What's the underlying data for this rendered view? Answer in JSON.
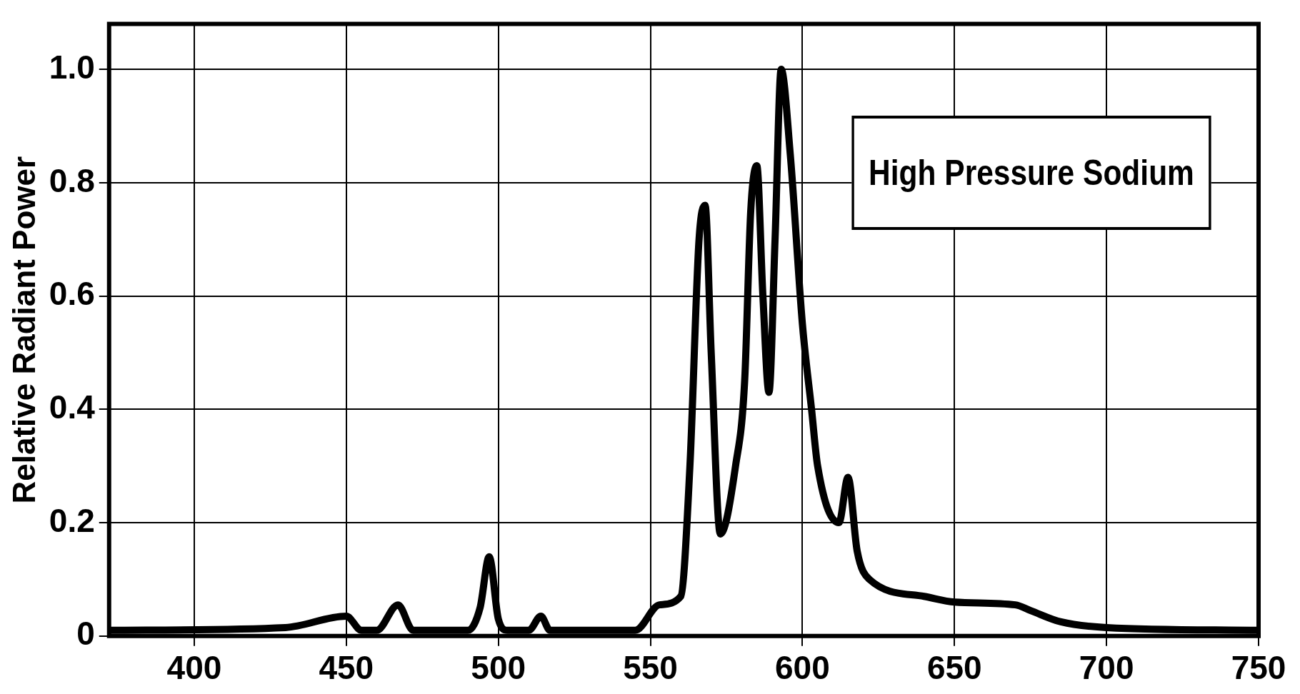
{
  "chart_data": {
    "type": "line",
    "ylabel": "Relative Radiant Power",
    "annotations": [
      "High Pressure Sodium"
    ],
    "series": [
      {
        "color": "#000000",
        "x": [
          372,
          430,
          450,
          455,
          460,
          467,
          472,
          490,
          494,
          497,
          500,
          503,
          510,
          514,
          517,
          545,
          553,
          560,
          563,
          566,
          568,
          570,
          573,
          578,
          581,
          583,
          585,
          587,
          589,
          591,
          593,
          596,
          600,
          603,
          605,
          612,
          615,
          618,
          622,
          640,
          650,
          670,
          675,
          685,
          700,
          750
        ],
        "values": [
          0.01,
          0.015,
          0.035,
          0.01,
          0.01,
          0.055,
          0.01,
          0.01,
          0.05,
          0.14,
          0.03,
          0.01,
          0.01,
          0.035,
          0.01,
          0.01,
          0.055,
          0.07,
          0.3,
          0.7,
          0.76,
          0.5,
          0.18,
          0.3,
          0.45,
          0.75,
          0.83,
          0.6,
          0.43,
          0.7,
          1.0,
          0.85,
          0.55,
          0.4,
          0.3,
          0.2,
          0.28,
          0.15,
          0.1,
          0.07,
          0.06,
          0.055,
          0.045,
          0.025,
          0.015,
          0.01
        ]
      }
    ],
    "xlim": [
      372,
      750
    ],
    "xticks": [
      400,
      450,
      500,
      550,
      600,
      650,
      700,
      750
    ],
    "ylim": [
      0,
      1.08
    ],
    "yticks": [
      {
        "value": 0,
        "label": "0"
      },
      0.2,
      0.4,
      0.6,
      0.8,
      {
        "value": 1,
        "label": "1.0"
      }
    ],
    "grid": true,
    "legend": false,
    "marker": "none",
    "line_style": "solid"
  }
}
